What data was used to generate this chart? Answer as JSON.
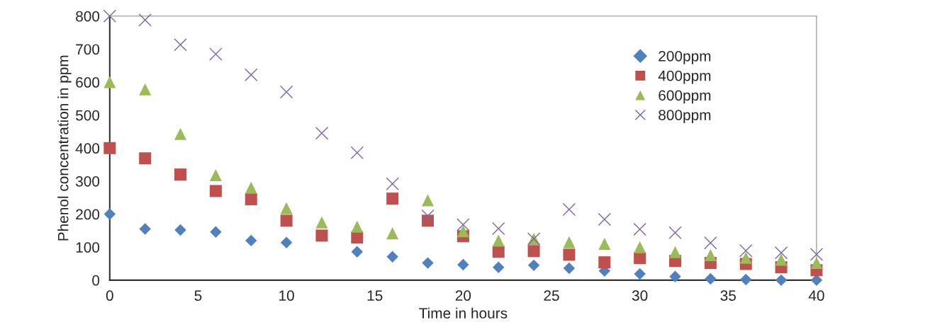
{
  "chart_data": {
    "type": "scatter",
    "xlabel": "Time in hours",
    "ylabel": "Phenol concentration in ppm",
    "x": [
      0,
      2,
      4,
      6,
      8,
      10,
      12,
      14,
      16,
      18,
      20,
      22,
      24,
      26,
      28,
      30,
      32,
      34,
      36,
      38,
      40
    ],
    "series": [
      {
        "name": "200ppm",
        "color": "#4f81bd",
        "marker": "diamond",
        "values": [
          200,
          155,
          152,
          146,
          120,
          114,
          null,
          86,
          71,
          52,
          47,
          39,
          45,
          36,
          28,
          19,
          11,
          4,
          2,
          0,
          0
        ]
      },
      {
        "name": "400ppm",
        "color": "#c0504d",
        "marker": "square",
        "values": [
          400,
          369,
          320,
          270,
          245,
          180,
          135,
          129,
          247,
          180,
          133,
          86,
          88,
          77,
          54,
          67,
          58,
          52,
          49,
          39,
          30
        ]
      },
      {
        "name": "600ppm",
        "color": "#9bbb59",
        "marker": "triangle",
        "values": [
          600,
          578,
          443,
          318,
          280,
          218,
          175,
          162,
          142,
          242,
          148,
          120,
          125,
          115,
          110,
          100,
          85,
          76,
          68,
          62,
          52
        ]
      },
      {
        "name": "800ppm",
        "color": "#8064a2",
        "marker": "cross",
        "values": [
          800,
          788,
          713,
          685,
          622,
          570,
          445,
          386,
          292,
          195,
          168,
          156,
          125,
          214,
          184,
          154,
          144,
          113,
          89,
          83,
          78
        ]
      }
    ],
    "xlim": [
      0,
      40
    ],
    "xticks": [
      0,
      5,
      10,
      15,
      20,
      25,
      30,
      35,
      40
    ],
    "ylim": [
      0,
      800
    ],
    "yticks": [
      0,
      100,
      200,
      300,
      400,
      500,
      600,
      700,
      800
    ],
    "legend": "top right",
    "grid": false
  }
}
